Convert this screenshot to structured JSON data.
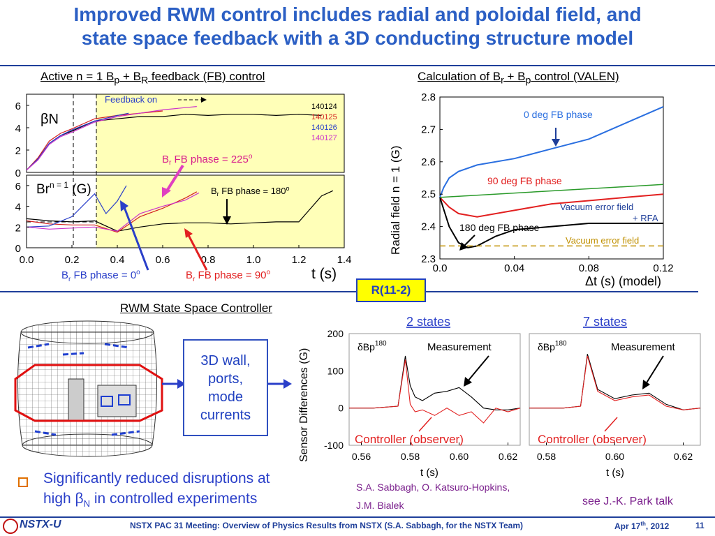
{
  "title": "Improved RWM control includes radial and poloidal field, and state space feedback with a 3D conducting structure model",
  "title_line1": "Improved RWM control includes radial and poloidal field, and",
  "title_line2": "state space feedback with a 3D conducting structure model",
  "left_panel": {
    "title_pre": "Active n = 1 B",
    "title_sub1": "p",
    "title_mid": " + B",
    "title_sub2": "R",
    "title_post": " feedback (FB) control",
    "feedback_on": "Feedback on",
    "shots": [
      "140124",
      "140125",
      "140126",
      "140127"
    ],
    "shot_colors": [
      "#000000",
      "#d42020",
      "#2a3fc9",
      "#cc33cc"
    ],
    "top_ylabel": "βN",
    "bottom_ylabel_pre": "Br",
    "bottom_ylabel_sup": "n = 1",
    "bottom_ylabel_post": " (G)",
    "xlabel": "t (s)",
    "x_ticks": [
      "0.0",
      "0.2",
      "0.4",
      "0.6",
      "0.8",
      "1.0",
      "1.2",
      "1.4"
    ],
    "top_y_ticks": [
      "6",
      "4",
      "2",
      "0"
    ],
    "bottom_y_ticks": [
      "6",
      "4",
      "2",
      "0"
    ],
    "ann_225": "Br FB phase = 225o",
    "ann_180": "Br FB phase = 180o",
    "ann_0": "Br FB phase = 0o",
    "ann_90": "Br FB phase = 90o"
  },
  "right_panel": {
    "title_pre": "Calculation of B",
    "title_sub1": "r",
    "title_mid": " + B",
    "title_sub2": "p",
    "title_post": " control (VALEN)",
    "ylabel": "Radial field n = 1 (G)",
    "xlabel": "Δt (s)   (model)",
    "x_ticks": [
      "0.0",
      "0.04",
      "0.08",
      "0.12"
    ],
    "y_ticks": [
      "2.8",
      "2.7",
      "2.6",
      "2.5",
      "2.4",
      "2.3"
    ],
    "labels": {
      "deg0": "0 deg FB phase",
      "deg90": "90 deg FB phase",
      "deg180": "180 deg FB phase",
      "vac_rfa_1": "Vacuum error field",
      "vac_rfa_2": "+ RFA",
      "vac": "Vacuum error field"
    }
  },
  "ref_box": "R(11-2)",
  "controller": {
    "title": "RWM State Space Controller",
    "box_lines": [
      "3D wall,",
      "ports,",
      "mode",
      "currents"
    ]
  },
  "sensor_panel": {
    "ylabel": "Sensor Differences (G)",
    "y_ticks": [
      "200",
      "100",
      "0",
      "-100"
    ],
    "left_title": "2 states",
    "right_title": "7 states",
    "left_x_ticks": [
      "0.56",
      "0.58",
      "0.60",
      "0.62"
    ],
    "right_x_ticks": [
      "0.58",
      "0.60",
      "0.62"
    ],
    "xlabel": "t (s)",
    "dbp": "δBp",
    "dbp_sup": "180",
    "measurement": "Measurement",
    "observer": "Controller (observer)"
  },
  "credits": {
    "authors_1": "S.A. Sabbagh, O. Katsuro-Hopkins,",
    "authors_2": "J.M. Bialek",
    "see": "see J.-K. Park talk"
  },
  "bullet": {
    "line1": "Significantly reduced disruptions at",
    "line2_pre": "high ",
    "line2_beta": "β",
    "line2_sub": "N",
    "line2_post": " in controlled experiments"
  },
  "footer": {
    "logo": "NSTX-U",
    "text": "NSTX PAC 31 Meeting: Overview of Physics Results from NSTX (S.A. Sabbagh, for the NSTX Team)",
    "date_pre": "Apr 17",
    "date_sup": "th",
    "date_post": ", 2012",
    "page": "11"
  },
  "chart_data": [
    {
      "type": "line",
      "title": "Active n = 1 Bp + BR feedback (FB) control",
      "ylabel": "βN",
      "xlim": [
        0.0,
        1.4
      ],
      "ylim": [
        0,
        7
      ],
      "series": [
        {
          "name": "140124",
          "x": [
            0.0,
            0.05,
            0.1,
            0.15,
            0.2,
            0.3,
            0.4,
            0.5,
            0.6,
            0.7,
            0.8,
            0.9,
            1.0,
            1.1,
            1.2,
            1.3
          ],
          "y": [
            0.2,
            1.2,
            2.6,
            3.3,
            3.7,
            4.6,
            4.8,
            5.0,
            5.0,
            5.2,
            5.1,
            5.2,
            5.2,
            5.1,
            5.2,
            5.1
          ]
        },
        {
          "name": "140125",
          "x": [
            0.0,
            0.05,
            0.1,
            0.15,
            0.2,
            0.3,
            0.4,
            0.5,
            0.55,
            0.6
          ],
          "y": [
            0.2,
            1.3,
            2.8,
            3.5,
            3.9,
            4.8,
            5.1,
            5.3,
            5.4,
            5.5
          ]
        },
        {
          "name": "140126",
          "x": [
            0.0,
            0.05,
            0.1,
            0.15,
            0.2,
            0.3,
            0.4,
            0.45
          ],
          "y": [
            0.2,
            1.2,
            2.6,
            3.3,
            3.8,
            4.6,
            5.1,
            5.3
          ]
        },
        {
          "name": "140127",
          "x": [
            0.0,
            0.05,
            0.1,
            0.15,
            0.2,
            0.3,
            0.4,
            0.5,
            0.6,
            0.7,
            0.75
          ],
          "y": [
            0.2,
            1.1,
            2.5,
            3.2,
            3.6,
            4.5,
            5.0,
            5.3,
            5.6,
            5.8,
            5.9
          ]
        }
      ]
    },
    {
      "type": "line",
      "ylabel": "Br n = 1 (G)",
      "xlabel": "t (s)",
      "xlim": [
        0.0,
        1.4
      ],
      "ylim": [
        0,
        7
      ],
      "series": [
        {
          "name": "140124",
          "x": [
            0.0,
            0.1,
            0.2,
            0.3,
            0.4,
            0.5,
            0.6,
            0.7,
            0.8,
            0.9,
            1.0,
            1.1,
            1.2,
            1.3,
            1.35
          ],
          "y": [
            2.8,
            2.6,
            2.5,
            2.6,
            1.6,
            2.0,
            2.3,
            2.4,
            2.4,
            2.3,
            2.4,
            2.5,
            2.5,
            5.0,
            5.5
          ]
        },
        {
          "name": "140125",
          "x": [
            0.0,
            0.1,
            0.2,
            0.3,
            0.4,
            0.5,
            0.6,
            0.7,
            0.75
          ],
          "y": [
            2.6,
            2.3,
            2.2,
            2.2,
            1.5,
            3.0,
            3.8,
            4.8,
            5.4
          ]
        },
        {
          "name": "140126",
          "x": [
            0.0,
            0.1,
            0.2,
            0.3,
            0.35,
            0.4,
            0.44
          ],
          "y": [
            2.0,
            2.1,
            3.0,
            5.2,
            3.3,
            4.5,
            6.0
          ]
        },
        {
          "name": "140127",
          "x": [
            0.0,
            0.1,
            0.2,
            0.3,
            0.4,
            0.5,
            0.6,
            0.7,
            0.76
          ],
          "y": [
            2.0,
            1.8,
            1.9,
            2.0,
            1.6,
            3.3,
            4.0,
            4.6,
            5.3
          ]
        }
      ]
    },
    {
      "type": "line",
      "title": "Calculation of Br + Bp control (VALEN)",
      "ylabel": "Radial field n = 1 (G)",
      "xlabel": "Δt (s)",
      "xlim": [
        0.0,
        0.12
      ],
      "ylim": [
        2.3,
        2.8
      ],
      "series": [
        {
          "name": "0 deg FB phase",
          "x": [
            0.0,
            0.002,
            0.005,
            0.01,
            0.02,
            0.04,
            0.06,
            0.08,
            0.1,
            0.12
          ],
          "y": [
            2.49,
            2.52,
            2.55,
            2.57,
            2.59,
            2.61,
            2.64,
            2.67,
            2.72,
            2.77
          ]
        },
        {
          "name": "90 deg FB phase",
          "x": [
            0.0,
            0.005,
            0.01,
            0.02,
            0.04,
            0.06,
            0.08,
            0.1,
            0.12
          ],
          "y": [
            2.49,
            2.46,
            2.44,
            2.43,
            2.45,
            2.47,
            2.48,
            2.49,
            2.5
          ]
        },
        {
          "name": "180 deg FB phase",
          "x": [
            0.0,
            0.005,
            0.01,
            0.015,
            0.02,
            0.03,
            0.04,
            0.06,
            0.08,
            0.1,
            0.12
          ],
          "y": [
            2.49,
            2.4,
            2.35,
            2.335,
            2.34,
            2.37,
            2.39,
            2.4,
            2.41,
            2.41,
            2.41
          ]
        },
        {
          "name": "Vacuum error field + RFA",
          "x": [
            0.0,
            0.12
          ],
          "y": [
            2.49,
            2.53
          ]
        },
        {
          "name": "Vacuum error field",
          "x": [
            0.0,
            0.12
          ],
          "y": [
            2.34,
            2.34
          ]
        }
      ]
    },
    {
      "type": "line",
      "title": "2 states",
      "ylabel": "Sensor Differences (G)",
      "xlabel": "t (s)",
      "xlim": [
        0.555,
        0.625
      ],
      "ylim": [
        -100,
        200
      ],
      "series": [
        {
          "name": "Measurement",
          "x": [
            0.555,
            0.565,
            0.575,
            0.578,
            0.58,
            0.582,
            0.585,
            0.59,
            0.595,
            0.6,
            0.605,
            0.61,
            0.615,
            0.62,
            0.625
          ],
          "y": [
            0,
            0,
            5,
            140,
            60,
            30,
            20,
            40,
            45,
            55,
            30,
            0,
            -5,
            -5,
            0
          ]
        },
        {
          "name": "Controller (observer)",
          "x": [
            0.555,
            0.565,
            0.575,
            0.578,
            0.58,
            0.582,
            0.585,
            0.59,
            0.595,
            0.6,
            0.605,
            0.61,
            0.615,
            0.62,
            0.625
          ],
          "y": [
            0,
            0,
            5,
            130,
            10,
            -10,
            -5,
            -20,
            0,
            -20,
            -10,
            -40,
            0,
            -10,
            0
          ]
        }
      ]
    },
    {
      "type": "line",
      "title": "7 states",
      "ylabel": "Sensor Differences (G)",
      "xlabel": "t (s)",
      "xlim": [
        0.575,
        0.625
      ],
      "ylim": [
        -100,
        200
      ],
      "series": [
        {
          "name": "Measurement",
          "x": [
            0.575,
            0.585,
            0.59,
            0.592,
            0.595,
            0.6,
            0.605,
            0.61,
            0.615,
            0.62,
            0.625
          ],
          "y": [
            0,
            0,
            5,
            145,
            50,
            25,
            35,
            40,
            10,
            -5,
            0
          ]
        },
        {
          "name": "Controller (observer)",
          "x": [
            0.575,
            0.585,
            0.59,
            0.592,
            0.595,
            0.6,
            0.605,
            0.61,
            0.615,
            0.62,
            0.625
          ],
          "y": [
            0,
            0,
            5,
            140,
            45,
            20,
            30,
            35,
            5,
            -5,
            0
          ]
        }
      ]
    }
  ]
}
